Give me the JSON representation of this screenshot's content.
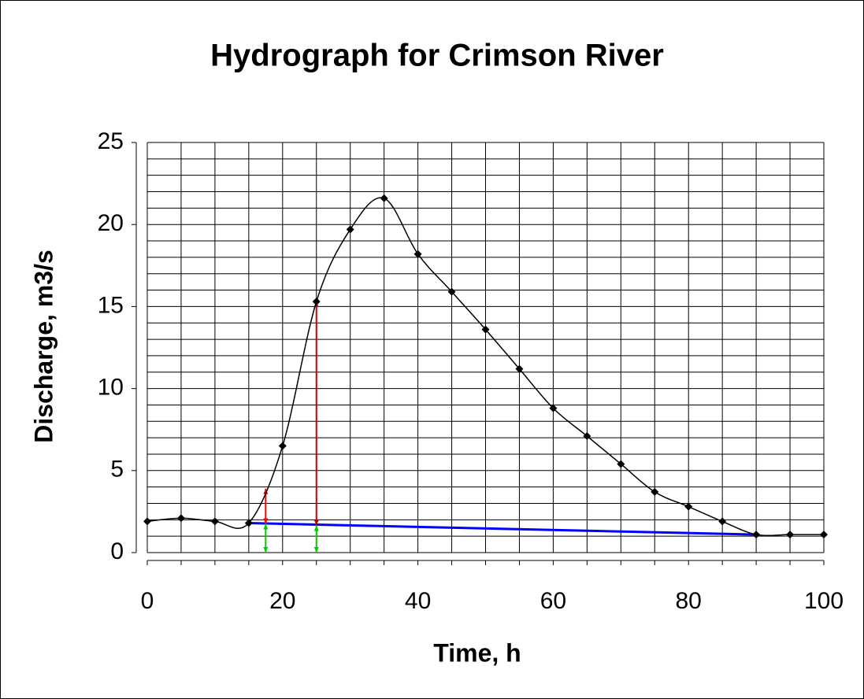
{
  "chart_data": {
    "type": "line",
    "title": "Hydrograph for Crimson River",
    "xlabel": "Time, h",
    "ylabel": "Discharge, m3/s",
    "x": [
      0,
      5,
      10,
      15,
      20,
      25,
      30,
      35,
      40,
      45,
      50,
      55,
      60,
      65,
      70,
      75,
      80,
      85,
      90,
      95,
      100
    ],
    "series": [
      {
        "name": "Discharge",
        "color": "#000000",
        "values": [
          1.9,
          2.1,
          1.9,
          1.8,
          6.5,
          15.3,
          19.7,
          21.6,
          18.2,
          15.9,
          13.6,
          11.2,
          8.8,
          7.1,
          5.4,
          3.7,
          2.8,
          1.9,
          1.1,
          1.1,
          1.1
        ]
      }
    ],
    "baseflow": {
      "x": [
        15,
        90
      ],
      "values": [
        1.8,
        1.1
      ],
      "color": "#0000ff"
    },
    "arrows": [
      {
        "x": 17.5,
        "from": 1.75,
        "to": 3.9,
        "color": "#ff0000"
      },
      {
        "x": 25,
        "from": 1.65,
        "to": 15.3,
        "color": "#cc0000"
      },
      {
        "x": 17.5,
        "from": 0,
        "to": 1.75,
        "color": "#00cc00"
      },
      {
        "x": 25,
        "from": 0,
        "to": 1.65,
        "color": "#00cc00"
      }
    ],
    "xlim": [
      0,
      100
    ],
    "xticks": [
      0,
      20,
      40,
      60,
      80,
      100
    ],
    "ylim": [
      0,
      25
    ],
    "yticks": [
      0,
      5,
      10,
      15,
      20,
      25
    ],
    "xgrid": [
      0,
      5,
      10,
      15,
      20,
      25,
      30,
      35,
      40,
      45,
      50,
      55,
      60,
      65,
      70,
      75,
      80,
      85,
      90,
      95,
      100
    ],
    "ygrid": [
      0,
      1,
      2,
      3,
      4,
      5,
      6,
      7,
      8,
      9,
      10,
      11,
      12,
      13,
      14,
      15,
      16,
      17,
      18,
      19,
      20,
      21,
      22,
      23,
      24,
      25
    ],
    "grid": true
  }
}
